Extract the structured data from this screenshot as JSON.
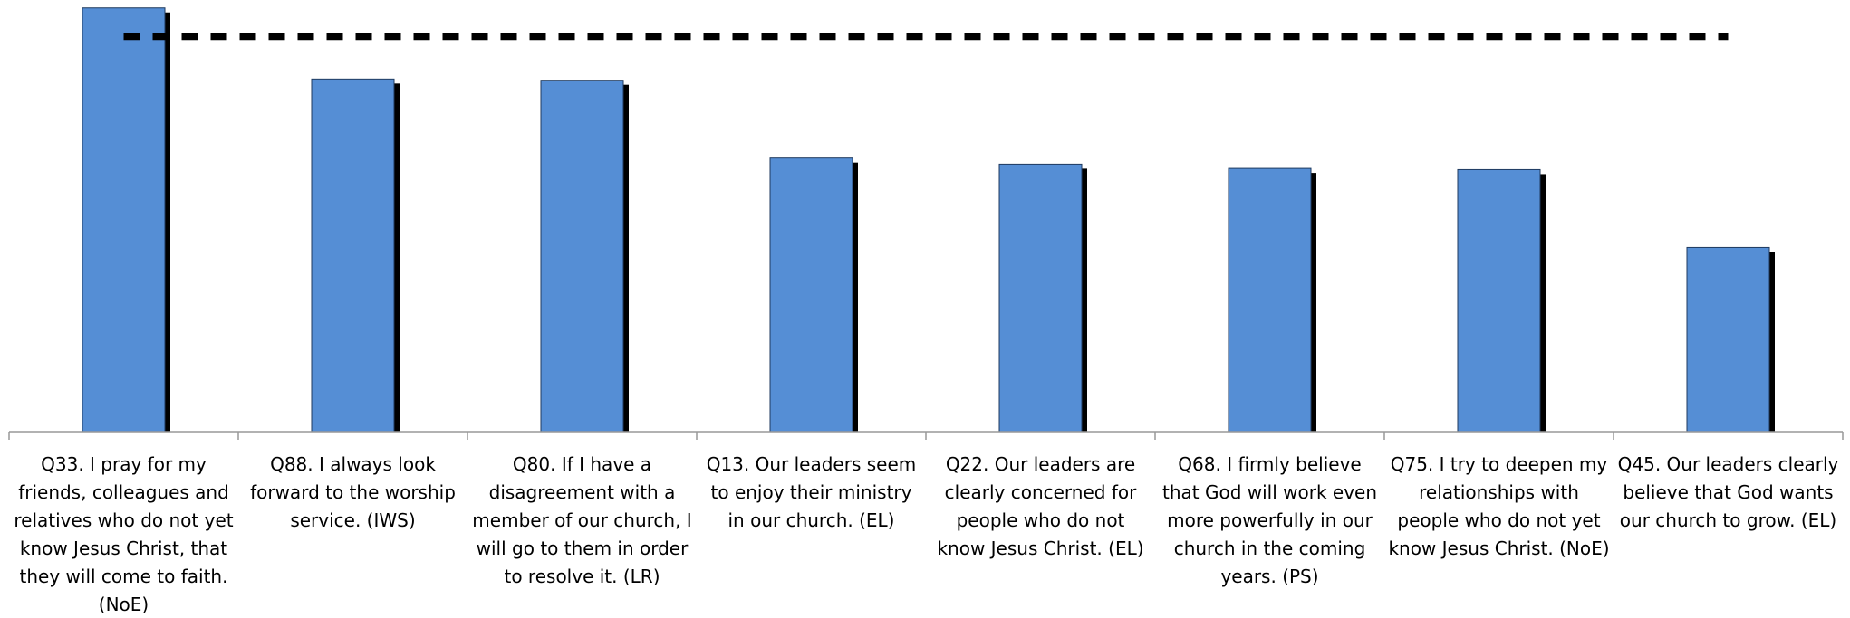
{
  "chart_data": {
    "type": "bar",
    "categories": [
      "Q33. I pray for my friends, colleagues and relatives who do not yet know Jesus Christ, that they will come to faith. (NoE)",
      "Q88. I always look forward to the worship service. (IWS)",
      "Q80. If I have a disagreement with a member of our church, I will go to them in order to resolve it. (LR)",
      "Q13. Our leaders seem to enjoy their ministry in our church. (EL)",
      "Q22. Our leaders are clearly concerned for people who do not know Jesus Christ. (EL)",
      "Q68. I firmly believe that God will work even more powerfully in our church in the coming years. (PS)",
      "Q75. I try to deepen my relationships with people who do not yet know Jesus Christ. (NoE)",
      "Q45. Our leaders clearly believe that God wants our church to grow. (EL)"
    ],
    "values": [
      69.7,
      58.0,
      57.8,
      45.0,
      44.0,
      43.3,
      43.1,
      30.3
    ],
    "color": "#558ed5",
    "ylim": [
      0,
      71
    ],
    "reference_line": 65,
    "grid": false
  }
}
